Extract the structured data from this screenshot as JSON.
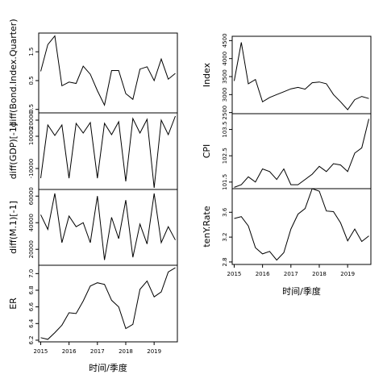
{
  "chart_data": [
    {
      "type": "line",
      "figure": "left",
      "xlabel": "时间/季度",
      "x": [
        2015.0,
        2015.25,
        2015.5,
        2015.75,
        2016.0,
        2016.25,
        2016.5,
        2016.75,
        2017.0,
        2017.25,
        2017.5,
        2017.75,
        2018.0,
        2018.25,
        2018.5,
        2018.75,
        2019.0,
        2019.25,
        2019.5,
        2019.75
      ],
      "x_ticks": [
        "2015",
        "2016",
        "2017",
        "2018",
        "2019"
      ],
      "x_tick_values": [
        2015,
        2016,
        2017,
        2018,
        2019
      ],
      "xlim": [
        2014.93,
        2019.82
      ],
      "panels": [
        {
          "ylabel": "diff(Bond.Index.Quarter)",
          "ylim": [
            -0.62,
            2.15
          ],
          "y_ticks": [
            "-0.5",
            "0.5",
            "1.5"
          ],
          "y_tick_values": [
            -0.5,
            0.5,
            1.5
          ],
          "values": [
            0.82,
            1.75,
            2.05,
            0.32,
            0.45,
            0.4,
            1.0,
            0.72,
            0.15,
            -0.35,
            0.85,
            0.85,
            0.05,
            -0.15,
            0.9,
            0.98,
            0.5,
            1.25,
            0.55,
            0.75
          ]
        },
        {
          "ylabel": "diff(GDP)[-1]",
          "ylim": [
            -23000,
            24500
          ],
          "y_ticks": [
            "-10000",
            "10000",
            "20000"
          ],
          "y_tick_values": [
            -10000,
            10000,
            20000
          ],
          "values": [
            -16000,
            17000,
            10500,
            17000,
            -16000,
            18000,
            12000,
            18500,
            -16000,
            18000,
            11000,
            19000,
            -18000,
            21000,
            12000,
            20500,
            -22000,
            20000,
            11000,
            22500
          ]
        },
        {
          "ylabel": "diff(M.1)[-1]",
          "ylim": [
            8000,
            65000
          ],
          "y_ticks": [
            "20000",
            "40000",
            "60000"
          ],
          "y_tick_values": [
            20000,
            40000,
            60000
          ],
          "values": [
            46000,
            35000,
            62000,
            25000,
            45000,
            37000,
            40000,
            25000,
            60000,
            12000,
            44000,
            28000,
            57000,
            14000,
            39000,
            24000,
            62000,
            25000,
            37000,
            27000
          ]
        },
        {
          "ylabel": "ER",
          "ylim": [
            6.18,
            7.1
          ],
          "y_ticks": [
            "6.2",
            "6.4",
            "6.6",
            "6.8",
            "7.0"
          ],
          "y_tick_values": [
            6.2,
            6.4,
            6.6,
            6.8,
            7.0
          ],
          "values": [
            6.23,
            6.21,
            6.29,
            6.38,
            6.53,
            6.52,
            6.67,
            6.85,
            6.89,
            6.87,
            6.68,
            6.6,
            6.34,
            6.39,
            6.81,
            6.91,
            6.72,
            6.78,
            7.02,
            7.07
          ]
        }
      ]
    },
    {
      "type": "line",
      "figure": "right",
      "xlabel": "时间/季度",
      "x": [
        2015.0,
        2015.25,
        2015.5,
        2015.75,
        2016.0,
        2016.25,
        2016.5,
        2016.75,
        2017.0,
        2017.25,
        2017.5,
        2017.75,
        2018.0,
        2018.25,
        2018.5,
        2018.75,
        2019.0,
        2019.25,
        2019.5,
        2019.75
      ],
      "x_ticks": [
        "2015",
        "2016",
        "2017",
        "2018",
        "2019"
      ],
      "x_tick_values": [
        2015,
        2016,
        2017,
        2018,
        2019
      ],
      "xlim": [
        2014.93,
        2019.82
      ],
      "panels": [
        {
          "ylabel": "Index",
          "ylim": [
            2470,
            4620
          ],
          "y_ticks": [
            "2500",
            "3000",
            "3500",
            "4000",
            "4500"
          ],
          "y_tick_values": [
            2500,
            3000,
            3500,
            4000,
            4500
          ],
          "values": [
            3380,
            4450,
            3300,
            3420,
            2800,
            2920,
            3000,
            3080,
            3160,
            3200,
            3150,
            3330,
            3350,
            3300,
            3000,
            2800,
            2580,
            2860,
            2950,
            2890
          ]
        },
        {
          "ylabel": "CPI",
          "ylim": [
            101.25,
            104.1
          ],
          "y_ticks": [
            "101.5",
            "102.5",
            "103.5"
          ],
          "y_tick_values": [
            101.5,
            102.5,
            103.5
          ],
          "values": [
            101.3,
            101.4,
            101.7,
            101.5,
            102.0,
            101.9,
            101.6,
            102.0,
            101.4,
            101.4,
            101.6,
            101.8,
            102.1,
            101.9,
            102.2,
            102.15,
            101.9,
            102.6,
            102.8,
            103.9
          ]
        },
        {
          "ylabel": "tenY.Rate",
          "ylim": [
            2.76,
            3.98
          ],
          "y_ticks": [
            "2.8",
            "3.2",
            "3.6"
          ],
          "y_tick_values": [
            2.8,
            3.2,
            3.6
          ],
          "values": [
            3.5,
            3.53,
            3.38,
            3.03,
            2.93,
            2.97,
            2.83,
            2.95,
            3.33,
            3.57,
            3.66,
            3.98,
            3.94,
            3.62,
            3.61,
            3.43,
            3.14,
            3.33,
            3.13,
            3.22
          ]
        }
      ]
    }
  ]
}
